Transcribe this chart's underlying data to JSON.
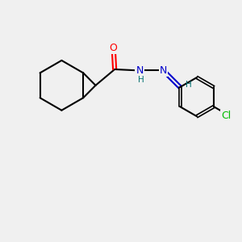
{
  "background_color": "#f0f0f0",
  "atom_colors": {
    "C": "#000000",
    "N": "#0000cc",
    "O": "#ff0000",
    "Cl": "#00bb00",
    "H": "#007070"
  },
  "bond_color": "#000000",
  "bond_width": 1.5,
  "font_size_atoms": 9,
  "font_size_small": 7.5
}
